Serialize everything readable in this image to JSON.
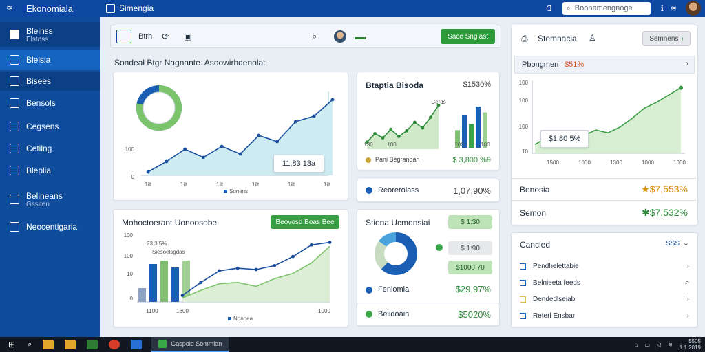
{
  "topbar": {
    "app_title": "Ekonomiala",
    "nav_tab": "Simengia",
    "search_placeholder": "Boonamengnoge",
    "icons": [
      "gear-icon",
      "help-icon",
      "settings-icon"
    ],
    "icon_labels": [
      "ᗡ",
      "ℹ",
      "≋"
    ]
  },
  "sidebar": {
    "items": [
      {
        "label": "Bleinss",
        "sub": "Elstess",
        "icon": "dashboard-icon"
      },
      {
        "label": "Bleisia",
        "icon": "home-icon"
      },
      {
        "label": "Bisees",
        "icon": "home-outline-icon"
      },
      {
        "label": "Bensols",
        "icon": "people-icon"
      },
      {
        "label": "Cegsens",
        "icon": "card-icon"
      },
      {
        "label": "Cetilng",
        "icon": "window-icon"
      },
      {
        "label": "Bleplia",
        "icon": "briefcase-icon"
      },
      {
        "label": "Belineans",
        "sub": "Gssiten",
        "icon": "report-icon"
      },
      {
        "label": "Neocentigaria",
        "icon": "grid-icon"
      }
    ]
  },
  "main_header": {
    "text": "Btrh",
    "cta": "Sace Sngiast"
  },
  "section_title": "Sondeal Btgr Nagnante. Asoowirhdenolat",
  "card_main_chart": {
    "tooltip": "11,83 13a",
    "legend": "Sonens",
    "chart_data": {
      "type": "area",
      "x_labels": [
        "1ilt",
        "1ilt",
        "1ilt",
        "1ilt",
        "1ilt",
        "1ilt"
      ],
      "y_labels": [
        "0",
        "100"
      ],
      "values": [
        5,
        20,
        38,
        26,
        42,
        31,
        58,
        49,
        78,
        86,
        110
      ],
      "ymax": 130,
      "donut": [
        0.78,
        0.22
      ]
    }
  },
  "card_kpi": {
    "title": "Btaptia Bisoda",
    "value": "$1530%",
    "label_top": "Cerds",
    "legend": "Pani Begranoan",
    "legend_value": "$ 3,800 %9",
    "x_labels": [
      "130",
      "100",
      "100",
      "100"
    ],
    "chart_data": {
      "type": "area",
      "values": [
        10,
        22,
        16,
        28,
        18,
        26,
        38,
        30,
        45,
        62
      ],
      "bars": [
        30,
        55,
        40,
        70,
        60
      ],
      "ymax": 70
    }
  },
  "card_stat1": {
    "label": "Reorerolass",
    "value": "1,07,90%"
  },
  "card_stat2": {
    "label": "Feniomia",
    "value": "$29,97%"
  },
  "card_stat3": {
    "label": "Beiidoain",
    "value": "$5020%"
  },
  "card_bottom_chart": {
    "title": "Mohoctoerant Uonoosobe",
    "button": "Beovosd Boas Bee",
    "annotation": "23.3 5%",
    "legend_top": "Siesoelsgdas",
    "legend_bottom": "Nonoea",
    "y_labels": [
      "100",
      "100",
      "10",
      "0"
    ],
    "x_labels": [
      "1100",
      "1300",
      "1000"
    ],
    "chart_data": {
      "type": "bar",
      "bars": [
        20,
        55,
        60,
        50,
        60
      ],
      "line": [
        10,
        30,
        48,
        52,
        50,
        56,
        70,
        88,
        92
      ],
      "area": [
        6,
        18,
        28,
        30,
        24,
        36,
        44,
        60,
        86
      ],
      "ymax": 100
    }
  },
  "card_donut": {
    "title": "Stiona Ucmonsiai",
    "pill1": "$ 1:30",
    "pill2": "$ 1:90",
    "pill3": "$1000 70",
    "chart_data": {
      "type": "pie",
      "values": [
        0.62,
        0.23,
        0.15
      ]
    }
  },
  "right_panel": {
    "header": "Stemnacia",
    "header_button": "Semnens",
    "subheader": "Pbongmen",
    "subheader_value": "$51%",
    "tooltip": "$1,80 5%",
    "y_labels": [
      "100",
      "100",
      "100",
      "10"
    ],
    "x_labels": [
      "1500",
      "1000",
      "1300",
      "1000",
      "1000"
    ],
    "chart_data": {
      "type": "area",
      "values": [
        12,
        22,
        18,
        26,
        24,
        32,
        28,
        36,
        48,
        62,
        70,
        80,
        90
      ],
      "ymax": 100
    },
    "metric1_label": "Benosia",
    "metric1_value": "★$7,553%",
    "metric2_label": "Semon",
    "metric2_value": "✱$7,532%",
    "list_title": "Cancled",
    "list_action": "SSS",
    "list": [
      {
        "label": "Pendhelettabie",
        "color": "#1565c0",
        "mark": "›"
      },
      {
        "label": "Belnieeta feeds",
        "color": "#1565c0",
        "mark": ">"
      },
      {
        "label": "Dendedlseiab",
        "color": "#e0c14a",
        "mark": "|›"
      },
      {
        "label": "Reterl Ensbar",
        "color": "#1565c0",
        "mark": "›"
      }
    ]
  },
  "taskbar": {
    "active_app": "Gaspoid Sommlan",
    "clock_line1": "5505",
    "clock_line2": "1 1 2019"
  }
}
